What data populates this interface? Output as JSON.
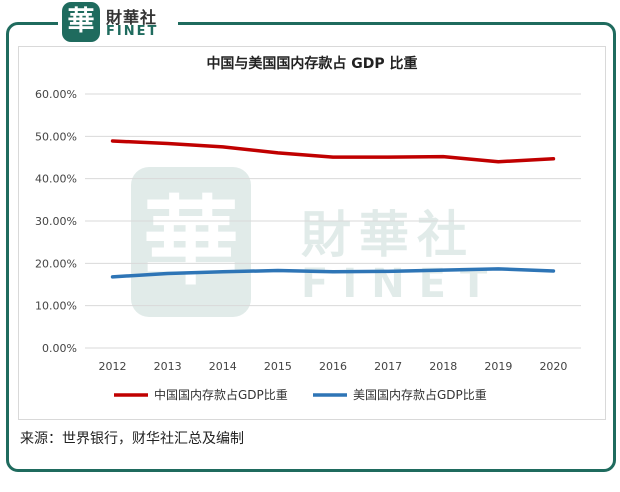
{
  "brand": {
    "name_cn": "財華社",
    "name_en": "FINET",
    "seal_char": "華",
    "watermark_cn": "財華社",
    "watermark_en": "FINET"
  },
  "source_text": "来源：世界银行，财华社汇总及编制",
  "colors": {
    "china": "#c00000",
    "us": "#2e75b6",
    "grid": "#d9d9d9",
    "frame": "#1f6b5e"
  },
  "chart_data": {
    "type": "line",
    "title": "中国与美国国内存款占 GDP 比重",
    "x": [
      "2012",
      "2013",
      "2014",
      "2015",
      "2016",
      "2017",
      "2018",
      "2019",
      "2020"
    ],
    "ylim": [
      0,
      60
    ],
    "yticks": [
      "0.00%",
      "10.00%",
      "20.00%",
      "30.00%",
      "40.00%",
      "50.00%",
      "60.00%"
    ],
    "grid": true,
    "legend": "bottom",
    "series": [
      {
        "name": "中国国内存款占GDP比重",
        "color": "#c00000",
        "values": [
          48.9,
          48.3,
          47.5,
          46.1,
          45.1,
          45.1,
          45.2,
          44.0,
          44.7
        ]
      },
      {
        "name": "美国国内存款占GDP比重",
        "color": "#2e75b6",
        "values": [
          16.8,
          17.6,
          18.0,
          18.3,
          18.0,
          18.1,
          18.4,
          18.7,
          18.2
        ]
      }
    ]
  }
}
